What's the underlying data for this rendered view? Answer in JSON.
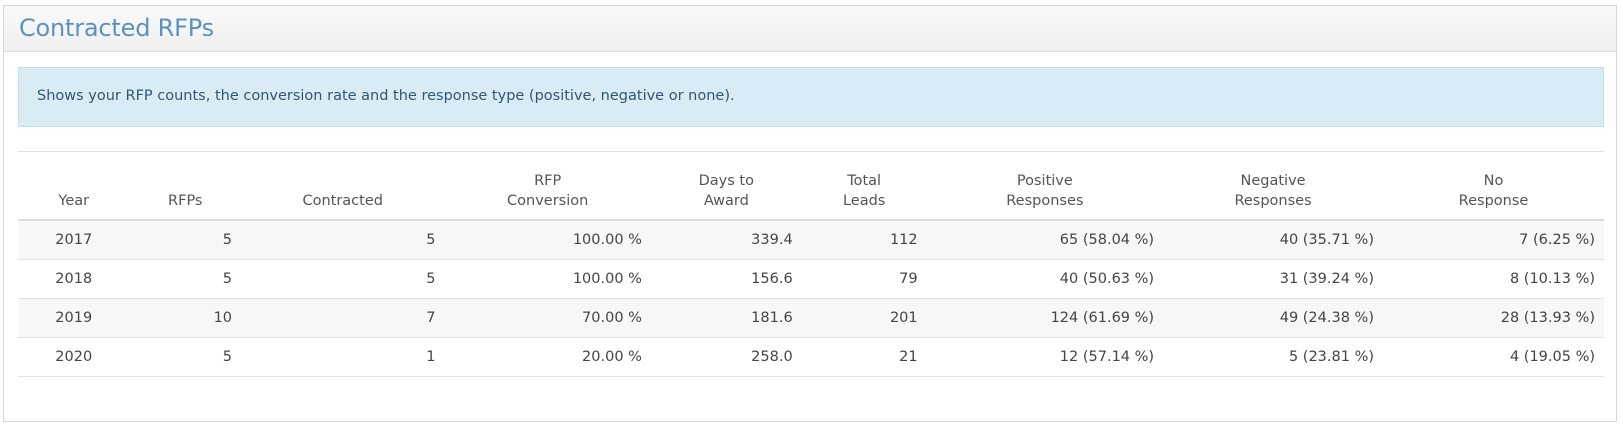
{
  "panel": {
    "title": "Contracted RFPs"
  },
  "info": {
    "text": "Shows your RFP counts, the conversion rate and the response type (positive, negative or none)."
  },
  "table": {
    "headers": [
      [
        "",
        "Year"
      ],
      [
        "",
        "RFPs"
      ],
      [
        "",
        "Contracted"
      ],
      [
        "RFP",
        "Conversion"
      ],
      [
        "Days to",
        "Award"
      ],
      [
        "Total",
        "Leads"
      ],
      [
        "Positive",
        "Responses"
      ],
      [
        "Negative",
        "Responses"
      ],
      [
        "No",
        "Response"
      ]
    ],
    "rows": [
      [
        "2017",
        "5",
        "5",
        "100.00 %",
        "339.4",
        "112",
        "65 (58.04 %)",
        "40 (35.71 %)",
        "7 (6.25 %)"
      ],
      [
        "2018",
        "5",
        "5",
        "100.00 %",
        "156.6",
        "79",
        "40 (50.63 %)",
        "31 (39.24 %)",
        "8 (10.13 %)"
      ],
      [
        "2019",
        "10",
        "7",
        "70.00 %",
        "181.6",
        "201",
        "124 (61.69 %)",
        "49 (24.38 %)",
        "28 (13.93 %)"
      ],
      [
        "2020",
        "5",
        "1",
        "20.00 %",
        "258.0",
        "21",
        "12 (57.14 %)",
        "5 (23.81 %)",
        "4 (19.05 %)"
      ]
    ]
  }
}
